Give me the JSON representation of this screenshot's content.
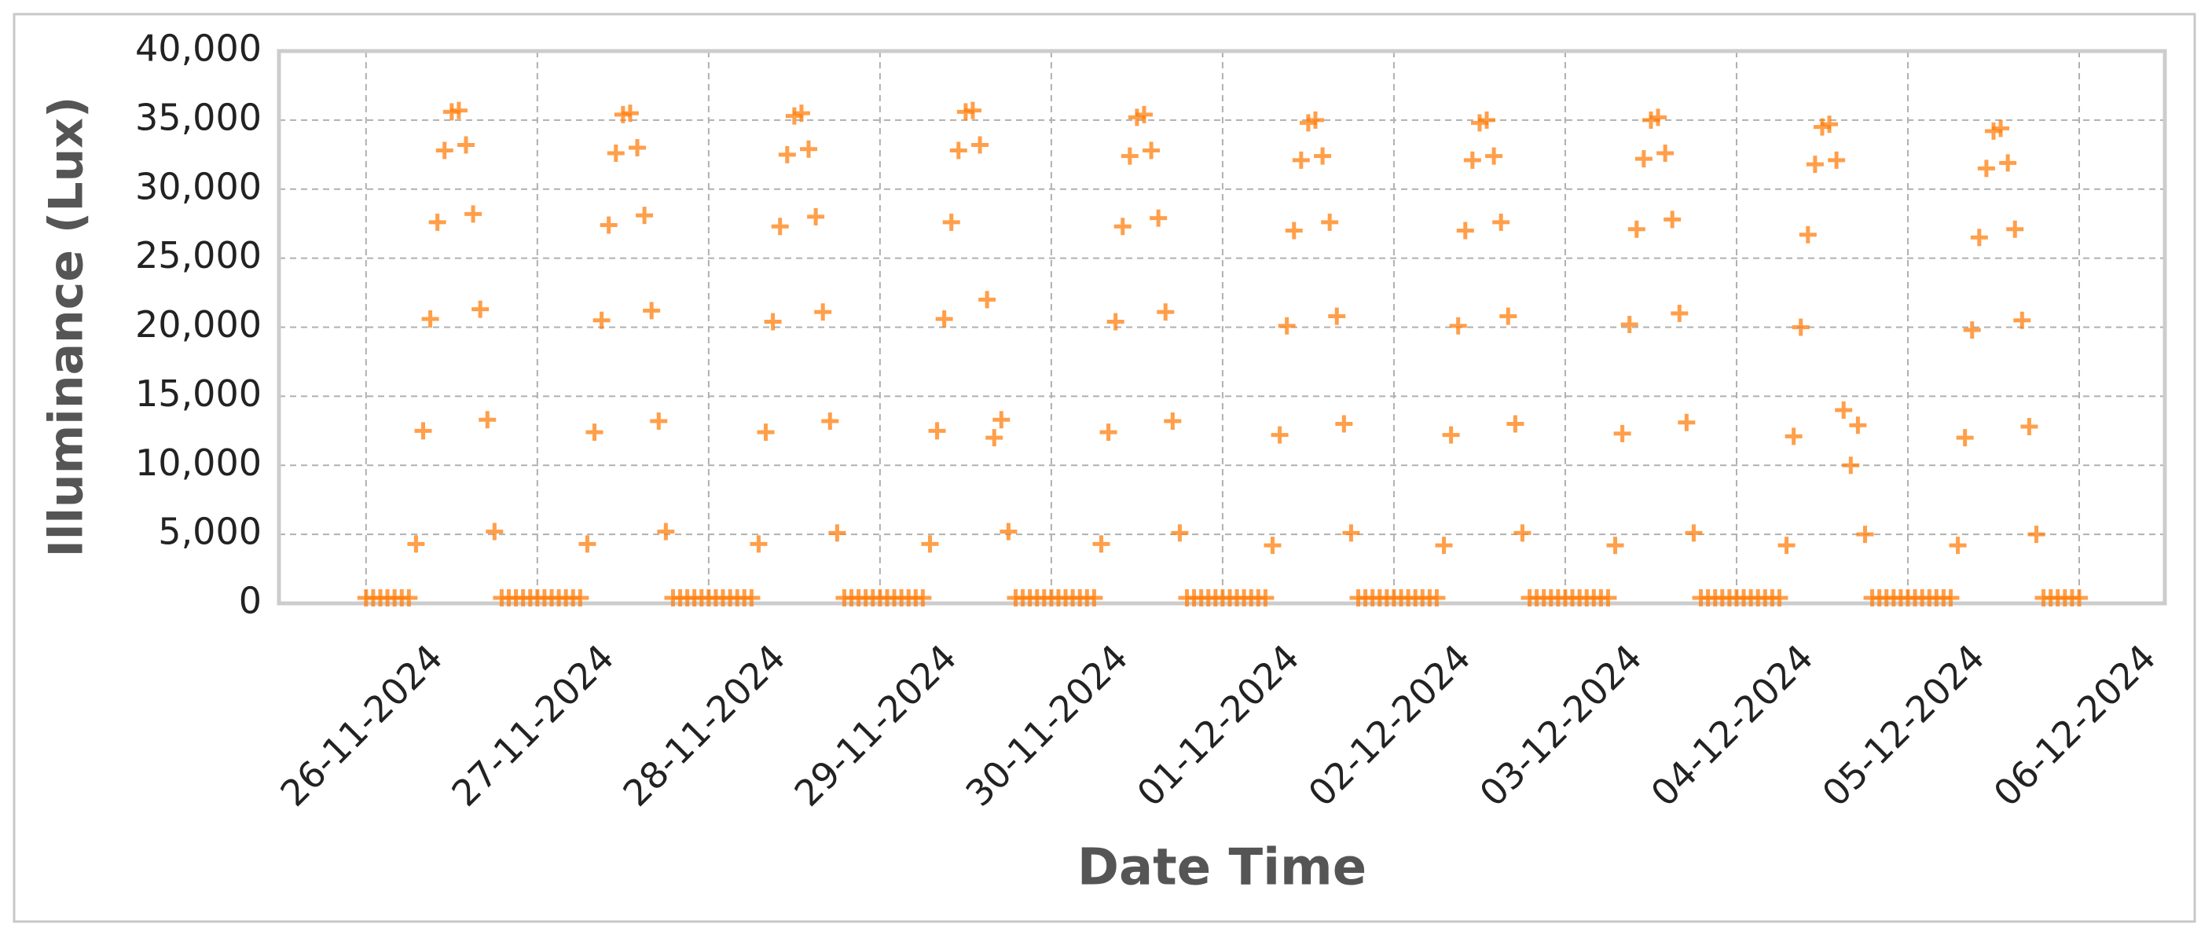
{
  "chart_data": {
    "type": "scatter",
    "xlabel": "Date Time",
    "ylabel": "Illuminance (Lux)",
    "color": "#ff7f0e",
    "grid": true,
    "xlim": [
      -12.2,
      252
    ],
    "ylim": [
      0,
      40000
    ],
    "xticks": [
      {
        "value": 0,
        "label": "26-11-2024"
      },
      {
        "value": 24,
        "label": "27-11-2024"
      },
      {
        "value": 48,
        "label": "28-11-2024"
      },
      {
        "value": 72,
        "label": "29-11-2024"
      },
      {
        "value": 96,
        "label": "30-11-2024"
      },
      {
        "value": 120,
        "label": "01-12-2024"
      },
      {
        "value": 144,
        "label": "02-12-2024"
      },
      {
        "value": 168,
        "label": "03-12-2024"
      },
      {
        "value": 192,
        "label": "04-12-2024"
      },
      {
        "value": 216,
        "label": "05-12-2024"
      },
      {
        "value": 240,
        "label": "06-12-2024"
      }
    ],
    "yticks": [
      0,
      {
        "value": 5000,
        "label": "5,000"
      },
      {
        "value": 10000,
        "label": "10,000"
      },
      {
        "value": 15000,
        "label": "15,000"
      },
      {
        "value": 20000,
        "label": "20,000"
      },
      {
        "value": 25000,
        "label": "25,000"
      },
      {
        "value": 30000,
        "label": "30,000"
      },
      {
        "value": 35000,
        "label": "35,000"
      },
      {
        "value": 40000,
        "label": "40,000"
      }
    ],
    "x": [
      0,
      1,
      2,
      3,
      4,
      5,
      6,
      7,
      8,
      9,
      10,
      11,
      12,
      13,
      14,
      15,
      16,
      17,
      18,
      19,
      20,
      21,
      22,
      23,
      24,
      25,
      26,
      27,
      28,
      29,
      30,
      31,
      32,
      33,
      34,
      35,
      36,
      37,
      38,
      39,
      40,
      41,
      42,
      43,
      44,
      45,
      46,
      47,
      48,
      49,
      50,
      51,
      52,
      53,
      54,
      55,
      56,
      57,
      58,
      59,
      60,
      61,
      62,
      63,
      64,
      65,
      66,
      67,
      68,
      69,
      70,
      71,
      72,
      73,
      74,
      75,
      76,
      77,
      78,
      79,
      80,
      81,
      82,
      83,
      84,
      85,
      86,
      87,
      88,
      89,
      90,
      91,
      92,
      93,
      94,
      95,
      96,
      97,
      98,
      99,
      100,
      101,
      102,
      103,
      104,
      105,
      106,
      107,
      108,
      109,
      110,
      111,
      112,
      113,
      114,
      115,
      116,
      117,
      118,
      119,
      120,
      121,
      122,
      123,
      124,
      125,
      126,
      127,
      128,
      129,
      130,
      131,
      132,
      133,
      134,
      135,
      136,
      137,
      138,
      139,
      140,
      141,
      142,
      143,
      144,
      145,
      146,
      147,
      148,
      149,
      150,
      151,
      152,
      153,
      154,
      155,
      156,
      157,
      158,
      159,
      160,
      161,
      162,
      163,
      164,
      165,
      166,
      167,
      168,
      169,
      170,
      171,
      172,
      173,
      174,
      175,
      176,
      177,
      178,
      179,
      180,
      181,
      182,
      183,
      184,
      185,
      186,
      187,
      188,
      189,
      190,
      191,
      192,
      193,
      194,
      195,
      196,
      197,
      198,
      199,
      200,
      201,
      202,
      203,
      204,
      205,
      206,
      207,
      208,
      209,
      210,
      211,
      212,
      213,
      214,
      215,
      216,
      217,
      218,
      219,
      220,
      221,
      222,
      223,
      224,
      225,
      226,
      227,
      228,
      229,
      230,
      231,
      232,
      233,
      234,
      235,
      236,
      237,
      238,
      239,
      240
    ],
    "values": [
      400,
      400,
      400,
      400,
      400,
      400,
      400,
      4300,
      12500,
      20600,
      27600,
      32800,
      35600,
      35700,
      33200,
      28200,
      21300,
      13300,
      5200,
      400,
      400,
      400,
      400,
      400,
      400,
      400,
      400,
      400,
      400,
      400,
      400,
      4300,
      12400,
      20500,
      27400,
      32600,
      35400,
      35500,
      33000,
      28100,
      21200,
      13200,
      5200,
      400,
      400,
      400,
      400,
      400,
      400,
      400,
      400,
      400,
      400,
      400,
      400,
      4300,
      12400,
      20400,
      27300,
      32500,
      35300,
      35500,
      32900,
      28000,
      21100,
      13200,
      5100,
      400,
      400,
      400,
      400,
      400,
      400,
      400,
      400,
      400,
      400,
      400,
      400,
      4300,
      12500,
      20600,
      27600,
      32800,
      35600,
      35700,
      33200,
      22000,
      12000,
      13300,
      5200,
      400,
      400,
      400,
      400,
      400,
      400,
      400,
      400,
      400,
      400,
      400,
      400,
      4300,
      12400,
      20400,
      27300,
      32400,
      35200,
      35400,
      32800,
      27900,
      21100,
      13200,
      5100,
      400,
      400,
      400,
      400,
      400,
      400,
      400,
      400,
      400,
      400,
      400,
      400,
      4200,
      12200,
      20100,
      27000,
      32100,
      34800,
      35000,
      32400,
      27600,
      20800,
      13000,
      5100,
      400,
      400,
      400,
      400,
      400,
      400,
      400,
      400,
      400,
      400,
      400,
      400,
      4200,
      12200,
      20100,
      27000,
      32100,
      34800,
      35000,
      32400,
      27600,
      20800,
      13000,
      5100,
      400,
      400,
      400,
      400,
      400,
      400,
      400,
      400,
      400,
      400,
      400,
      400,
      4200,
      12300,
      20200,
      27100,
      32200,
      35000,
      35200,
      32600,
      27800,
      21000,
      13100,
      5100,
      400,
      400,
      400,
      400,
      400,
      400,
      400,
      400,
      400,
      400,
      400,
      400,
      4200,
      12100,
      20000,
      26700,
      31800,
      34500,
      34700,
      32100,
      14000,
      10000,
      12900,
      5000,
      400,
      400,
      400,
      400,
      400,
      400,
      400,
      400,
      400,
      400,
      400,
      400,
      4200,
      12000,
      19800,
      26500,
      31500,
      34200,
      34400,
      31900,
      27100,
      20500,
      12800,
      5000,
      400,
      400,
      400,
      400,
      400,
      400
    ]
  }
}
